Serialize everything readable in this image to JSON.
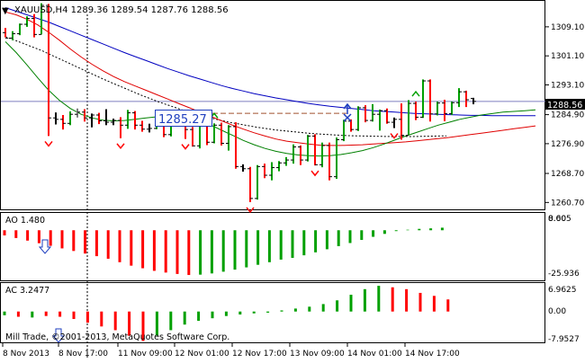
{
  "header": {
    "symbol_line": "XAUUSD,H4  1289.36 1289.54 1287.76 1288.56"
  },
  "colors": {
    "background": "#ffffff",
    "bull": "#00a000",
    "bear": "#ff0000",
    "neutral": "#808080",
    "ma_blue": "#0000c0",
    "ma_red": "#e00000",
    "ma_green": "#008000",
    "price_line": "#7f7fbf",
    "trade_line": "#a0522d"
  },
  "main_panel": {
    "price_axis_labels": [
      "1309.10",
      "1301.10",
      "1293.10",
      "1284.90",
      "1276.90",
      "1268.70",
      "1260.70"
    ],
    "current_price": "1288.56",
    "price_annotation": "1285.27"
  },
  "ao_panel": {
    "title": "AO 1.480",
    "axis_labels": [
      "0.00",
      "-25.936"
    ],
    "top_label": "8.605"
  },
  "ac_panel": {
    "title": "AC 3.2477",
    "axis_labels": [
      "6.9625",
      "0.00",
      "-7.9527"
    ],
    "watermark": "Mill Trade, ©2001-2013, MetaQuotes Software Corp."
  },
  "time_axis": {
    "labels": [
      "8 Nov 2013",
      "8 Nov 17:00",
      "11 Nov 09:00",
      "12 Nov 01:00",
      "12 Nov 17:00",
      "13 Nov 09:00",
      "14 Nov 01:00",
      "14 Nov 17:00"
    ]
  },
  "chart_data": [
    {
      "type": "candlestick",
      "ylim": [
        1258.8,
        1316.0
      ],
      "ohlc": [
        [
          1307.5,
          1308.8,
          1306.2,
          1306.0
        ],
        [
          1306.0,
          1307.9,
          1305.4,
          1307.2
        ],
        [
          1307.2,
          1310.0,
          1306.8,
          1309.8
        ],
        [
          1309.8,
          1312.0,
          1309.1,
          1311.4
        ],
        [
          1311.4,
          1312.6,
          1306.2,
          1307.0
        ],
        [
          1307.0,
          1315.6,
          1307.0,
          1315.0
        ],
        [
          1315.0,
          1315.4,
          1279.0,
          1284.0
        ],
        [
          1284.0,
          1285.5,
          1282.2,
          1283.6
        ],
        [
          1283.6,
          1284.8,
          1280.8,
          1282.5
        ],
        [
          1282.5,
          1285.8,
          1282.0,
          1285.0
        ],
        [
          1285.0,
          1286.6,
          1284.1,
          1285.6
        ],
        [
          1285.6,
          1286.4,
          1283.0,
          1284.0
        ],
        [
          1284.0,
          1285.2,
          1281.4,
          1284.8
        ],
        [
          1284.8,
          1285.4,
          1282.3,
          1283.2
        ],
        [
          1283.2,
          1286.4,
          1282.0,
          1282.8
        ],
        [
          1282.8,
          1283.8,
          1282.0,
          1283.3
        ],
        [
          1283.3,
          1284.2,
          1278.4,
          1282.0
        ],
        [
          1282.0,
          1286.2,
          1281.0,
          1285.4
        ],
        [
          1285.4,
          1285.9,
          1280.8,
          1282.0
        ],
        [
          1282.0,
          1283.2,
          1280.2,
          1280.9
        ],
        [
          1280.9,
          1282.4,
          1280.0,
          1281.1
        ],
        [
          1281.1,
          1283.3,
          1280.9,
          1282.9
        ],
        [
          1282.9,
          1283.2,
          1278.7,
          1279.4
        ],
        [
          1279.4,
          1285.8,
          1278.9,
          1285.0
        ],
        [
          1285.0,
          1286.0,
          1283.5,
          1284.0
        ],
        [
          1284.0,
          1284.2,
          1278.2,
          1280.8
        ],
        [
          1280.8,
          1281.5,
          1276.1,
          1276.3
        ],
        [
          1276.3,
          1283.2,
          1275.6,
          1282.6
        ],
        [
          1282.6,
          1283.1,
          1276.5,
          1277.3
        ],
        [
          1277.3,
          1282.5,
          1277.0,
          1282.0
        ],
        [
          1282.0,
          1282.7,
          1276.4,
          1277.0
        ],
        [
          1277.0,
          1282.0,
          1275.0,
          1281.6
        ],
        [
          1281.6,
          1282.8,
          1270.0,
          1270.6
        ],
        [
          1270.6,
          1271.2,
          1269.2,
          1270.0
        ],
        [
          1270.0,
          1270.5,
          1260.8,
          1261.8
        ],
        [
          1261.8,
          1271.0,
          1261.5,
          1270.6
        ],
        [
          1270.6,
          1271.4,
          1267.4,
          1268.2
        ],
        [
          1268.2,
          1271.8,
          1266.8,
          1270.3
        ],
        [
          1270.3,
          1272.1,
          1269.3,
          1271.6
        ],
        [
          1271.6,
          1273.2,
          1270.8,
          1272.4
        ],
        [
          1272.4,
          1276.7,
          1271.4,
          1276.0
        ],
        [
          1276.0,
          1276.4,
          1271.0,
          1272.4
        ],
        [
          1272.4,
          1279.3,
          1272.0,
          1279.0
        ],
        [
          1279.0,
          1279.5,
          1270.9,
          1271.1
        ],
        [
          1271.1,
          1277.2,
          1270.4,
          1276.4
        ],
        [
          1276.4,
          1277.2,
          1266.8,
          1267.8
        ],
        [
          1267.8,
          1278.6,
          1267.2,
          1278.0
        ],
        [
          1278.0,
          1283.5,
          1277.6,
          1283.1
        ],
        [
          1283.1,
          1283.6,
          1280.2,
          1280.8
        ],
        [
          1280.8,
          1287.2,
          1280.4,
          1286.8
        ],
        [
          1286.8,
          1287.5,
          1282.8,
          1283.3
        ],
        [
          1283.3,
          1287.8,
          1283.0,
          1285.0
        ],
        [
          1285.0,
          1286.3,
          1280.5,
          1286.0
        ],
        [
          1286.0,
          1286.6,
          1282.4,
          1282.8
        ],
        [
          1282.8,
          1284.1,
          1281.2,
          1283.6
        ],
        [
          1283.6,
          1288.0,
          1278.0,
          1279.2
        ],
        [
          1279.2,
          1288.9,
          1279.2,
          1288.0
        ],
        [
          1288.0,
          1288.5,
          1283.4,
          1284.2
        ],
        [
          1284.2,
          1294.6,
          1284.0,
          1294.2
        ],
        [
          1294.2,
          1294.6,
          1283.0,
          1285.1
        ],
        [
          1285.1,
          1288.5,
          1284.7,
          1288.1
        ],
        [
          1288.1,
          1289.0,
          1283.1,
          1285.2
        ],
        [
          1285.2,
          1288.5,
          1284.8,
          1288.2
        ],
        [
          1288.2,
          1292.2,
          1287.0,
          1291.2
        ],
        [
          1291.2,
          1291.5,
          1287.0,
          1289.0
        ],
        [
          1289.36,
          1289.54,
          1287.76,
          1288.56
        ]
      ],
      "ma_blue": [
        1314.4,
        1313.4,
        1312.4,
        1311.4,
        1310.4,
        1309.2,
        1308.0,
        1306.8,
        1305.6,
        1304.4,
        1303.2,
        1302.0,
        1300.9,
        1299.8,
        1298.7,
        1297.6,
        1296.6,
        1295.6,
        1294.7,
        1293.8,
        1292.9,
        1292.1,
        1291.4,
        1290.7,
        1290.1,
        1289.5,
        1289.0,
        1288.5,
        1288.0,
        1287.6,
        1287.2,
        1286.9,
        1286.6,
        1286.3,
        1286.0,
        1285.8,
        1285.6,
        1285.4,
        1285.2,
        1285.1,
        1285.0,
        1284.9,
        1284.8,
        1284.7,
        1284.7,
        1284.6,
        1284.6,
        1284.6,
        1284.6,
        1284.6
      ],
      "ma_red": [
        1313.2,
        1312.4,
        1311.2,
        1309.6,
        1307.6,
        1305.4,
        1303.0,
        1300.8,
        1298.8,
        1297.0,
        1295.4,
        1294.0,
        1292.8,
        1291.6,
        1290.4,
        1289.2,
        1288.0,
        1286.8,
        1285.6,
        1284.4,
        1283.2,
        1282.0,
        1280.9,
        1279.9,
        1279.0,
        1278.2,
        1277.6,
        1277.2,
        1276.8,
        1276.5,
        1276.4,
        1276.4,
        1276.5,
        1276.6,
        1276.8,
        1277.0,
        1277.2,
        1277.4,
        1277.7,
        1278.0,
        1278.3,
        1278.6,
        1279.0,
        1279.4,
        1279.8,
        1280.2,
        1280.6,
        1281.0,
        1281.4,
        1281.8
      ],
      "ma_green": [
        1305.0,
        1302.0,
        1298.6,
        1295.0,
        1291.6,
        1288.8,
        1286.6,
        1285.0,
        1284.0,
        1283.4,
        1283.2,
        1283.3,
        1283.6,
        1284.0,
        1284.3,
        1284.4,
        1284.3,
        1283.9,
        1283.2,
        1282.0,
        1280.6,
        1279.2,
        1277.8,
        1276.6,
        1275.6,
        1274.8,
        1274.2,
        1273.8,
        1273.6,
        1273.5,
        1273.6,
        1273.9,
        1274.4,
        1275.0,
        1275.8,
        1276.8,
        1277.9,
        1279.0,
        1280.0,
        1281.0,
        1282.0,
        1282.8,
        1283.6,
        1284.2,
        1284.8,
        1285.2,
        1285.6,
        1285.8,
        1286.0,
        1286.2
      ],
      "trade_level": 1285.27
    },
    {
      "type": "bar",
      "title": "AO 1.480",
      "ylim": [
        -29.0,
        9.5
      ],
      "values": [
        -3.0,
        -4.5,
        -6.0,
        -7.5,
        -9.0,
        -10.5,
        -12.0,
        -13.5,
        -15.0,
        -16.5,
        -18.5,
        -20.5,
        -22.0,
        -23.5,
        -24.5,
        -25.3,
        -25.9,
        -25.7,
        -25.0,
        -24.0,
        -22.8,
        -21.5,
        -20.0,
        -18.5,
        -17.0,
        -16.0,
        -14.5,
        -12.8,
        -11.0,
        -9.2,
        -7.4,
        -5.6,
        -3.8,
        -2.1,
        -0.5,
        0.3,
        0.8,
        1.1,
        1.48
      ],
      "colors": [
        "r",
        "r",
        "r",
        "r",
        "r",
        "r",
        "r",
        "r",
        "r",
        "r",
        "r",
        "r",
        "r",
        "r",
        "r",
        "r",
        "r",
        "g",
        "g",
        "g",
        "g",
        "g",
        "g",
        "g",
        "g",
        "g",
        "g",
        "g",
        "g",
        "g",
        "g",
        "g",
        "g",
        "g",
        "g",
        "g",
        "g",
        "g",
        "g"
      ]
    },
    {
      "type": "bar",
      "title": "AC 3.2477",
      "ylim": [
        -8.5,
        7.4
      ],
      "values": [
        -1.0,
        -1.4,
        -1.6,
        -1.2,
        -1.4,
        -2.0,
        -3.0,
        -4.0,
        -5.0,
        -6.5,
        -7.9,
        -6.5,
        -5.0,
        -3.5,
        -2.5,
        -1.8,
        -1.2,
        -0.8,
        -0.5,
        -0.3,
        0.3,
        0.8,
        1.3,
        2.0,
        3.0,
        4.5,
        6.0,
        6.9,
        6.5,
        6.0,
        5.0,
        4.2,
        3.25
      ],
      "colors": [
        "g",
        "r",
        "g",
        "r",
        "r",
        "r",
        "r",
        "r",
        "r",
        "r",
        "r",
        "g",
        "g",
        "g",
        "g",
        "g",
        "g",
        "g",
        "g",
        "g",
        "g",
        "g",
        "g",
        "g",
        "g",
        "g",
        "g",
        "g",
        "r",
        "r",
        "r",
        "r",
        "r"
      ]
    }
  ]
}
